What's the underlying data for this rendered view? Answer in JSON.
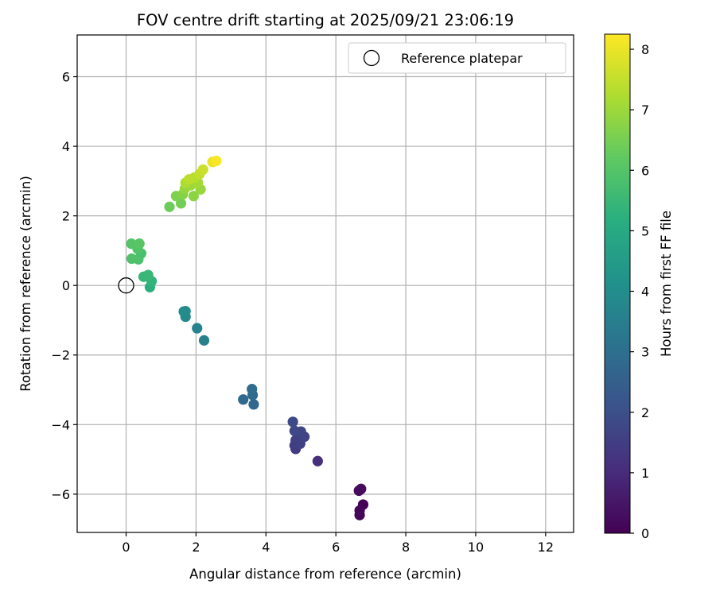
{
  "chart_data": {
    "type": "scatter",
    "title": "FOV centre drift starting at 2025/09/21 23:06:19",
    "xlabel": "Angular distance from reference (arcmin)",
    "ylabel": "Rotation from reference (arcmin)",
    "xlim": [
      -1.4,
      12.8
    ],
    "ylim": [
      -7.1,
      7.2
    ],
    "xticks": [
      0,
      2,
      4,
      6,
      8,
      10,
      12
    ],
    "yticks": [
      -6,
      -4,
      -2,
      0,
      2,
      4,
      6
    ],
    "grid": true,
    "legend": {
      "position": "top-right",
      "entries": [
        "Reference platepar"
      ]
    },
    "reference_point": {
      "x": 0,
      "y": 0,
      "label": "Reference platepar"
    },
    "colorbar": {
      "label": "Hours from first FF file",
      "colormap": "viridis",
      "range": [
        0,
        8.25
      ],
      "ticks": [
        0,
        1,
        2,
        3,
        4,
        5,
        6,
        7,
        8
      ]
    },
    "points": [
      {
        "x": 6.78,
        "y": -6.3,
        "h": 0.05
      },
      {
        "x": 6.68,
        "y": -6.6,
        "h": 0.1
      },
      {
        "x": 6.68,
        "y": -6.47,
        "h": 0.15
      },
      {
        "x": 6.66,
        "y": -5.9,
        "h": 0.2
      },
      {
        "x": 6.72,
        "y": -5.85,
        "h": 0.25
      },
      {
        "x": 5.48,
        "y": -5.05,
        "h": 1.1
      },
      {
        "x": 4.85,
        "y": -4.7,
        "h": 1.4
      },
      {
        "x": 4.82,
        "y": -4.6,
        "h": 1.5
      },
      {
        "x": 4.85,
        "y": -4.45,
        "h": 1.55
      },
      {
        "x": 4.98,
        "y": -4.55,
        "h": 1.6
      },
      {
        "x": 5.1,
        "y": -4.35,
        "h": 1.65
      },
      {
        "x": 5.0,
        "y": -4.2,
        "h": 1.7
      },
      {
        "x": 4.82,
        "y": -4.18,
        "h": 1.75
      },
      {
        "x": 4.77,
        "y": -3.92,
        "h": 1.8
      },
      {
        "x": 3.65,
        "y": -3.42,
        "h": 2.75
      },
      {
        "x": 3.35,
        "y": -3.28,
        "h": 2.8
      },
      {
        "x": 3.62,
        "y": -3.15,
        "h": 2.85
      },
      {
        "x": 3.6,
        "y": -2.98,
        "h": 2.9
      },
      {
        "x": 2.23,
        "y": -1.58,
        "h": 3.55
      },
      {
        "x": 2.03,
        "y": -1.23,
        "h": 3.65
      },
      {
        "x": 1.7,
        "y": -0.9,
        "h": 3.85
      },
      {
        "x": 1.65,
        "y": -0.75,
        "h": 3.9
      },
      {
        "x": 1.7,
        "y": -0.74,
        "h": 3.95
      },
      {
        "x": 0.68,
        "y": -0.05,
        "h": 5.2
      },
      {
        "x": 0.73,
        "y": 0.12,
        "h": 5.35
      },
      {
        "x": 0.5,
        "y": 0.25,
        "h": 5.45
      },
      {
        "x": 0.63,
        "y": 0.3,
        "h": 5.5
      },
      {
        "x": 0.43,
        "y": 0.92,
        "h": 5.8
      },
      {
        "x": 0.35,
        "y": 0.75,
        "h": 5.85
      },
      {
        "x": 0.16,
        "y": 0.77,
        "h": 5.9
      },
      {
        "x": 0.33,
        "y": 1.05,
        "h": 5.95
      },
      {
        "x": 0.15,
        "y": 1.2,
        "h": 6.0
      },
      {
        "x": 0.38,
        "y": 1.2,
        "h": 6.05
      },
      {
        "x": 1.24,
        "y": 2.26,
        "h": 6.35
      },
      {
        "x": 1.57,
        "y": 2.36,
        "h": 6.45
      },
      {
        "x": 1.43,
        "y": 2.57,
        "h": 6.6
      },
      {
        "x": 1.62,
        "y": 2.62,
        "h": 6.7
      },
      {
        "x": 1.93,
        "y": 2.57,
        "h": 6.8
      },
      {
        "x": 1.68,
        "y": 2.78,
        "h": 6.9
      },
      {
        "x": 2.13,
        "y": 2.76,
        "h": 6.95
      },
      {
        "x": 1.85,
        "y": 2.88,
        "h": 7.0
      },
      {
        "x": 2.05,
        "y": 2.96,
        "h": 7.1
      },
      {
        "x": 1.7,
        "y": 2.95,
        "h": 7.2
      },
      {
        "x": 1.95,
        "y": 3.1,
        "h": 7.3
      },
      {
        "x": 1.8,
        "y": 3.05,
        "h": 7.4
      },
      {
        "x": 2.1,
        "y": 3.2,
        "h": 7.5
      },
      {
        "x": 2.2,
        "y": 3.33,
        "h": 7.6
      },
      {
        "x": 2.47,
        "y": 3.55,
        "h": 8.0
      },
      {
        "x": 2.58,
        "y": 3.58,
        "h": 8.2
      }
    ]
  }
}
